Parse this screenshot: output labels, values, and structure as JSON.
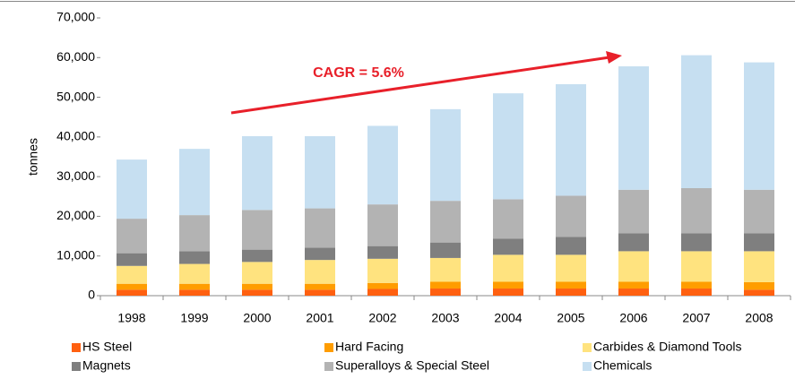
{
  "chart_data": {
    "type": "stacked_bar",
    "y_label": "tonnes",
    "annotation": "CAGR = 5.6%",
    "categories": [
      "1998",
      "1999",
      "2000",
      "2001",
      "2002",
      "2003",
      "2004",
      "2005",
      "2006",
      "2007",
      "2008"
    ],
    "series": [
      {
        "name": "HS Steel",
        "color": "#ff6010",
        "values": [
          1500,
          1500,
          1500,
          1500,
          1700,
          1800,
          1800,
          1800,
          1800,
          1800,
          1500
        ]
      },
      {
        "name": "Hard Facing",
        "color": "#ff9d00",
        "values": [
          1500,
          1500,
          1500,
          1500,
          1500,
          1700,
          1700,
          1700,
          1700,
          1700,
          1900
        ]
      },
      {
        "name": "Carbides & Diamond Tools",
        "color": "#ffe37f",
        "values": [
          4500,
          5000,
          5500,
          6000,
          6100,
          6000,
          6800,
          6800,
          7700,
          7700,
          7800
        ]
      },
      {
        "name": "Magnets",
        "color": "#7f7f7f",
        "values": [
          3200,
          3200,
          3100,
          3100,
          3200,
          3900,
          4100,
          4500,
          4500,
          4500,
          4500
        ]
      },
      {
        "name": "Superalloys & Special Steel",
        "color": "#b3b3b3",
        "values": [
          8700,
          9100,
          10000,
          9900,
          10500,
          10500,
          9900,
          10400,
          11000,
          11400,
          11000
        ]
      },
      {
        "name": "Chemicals",
        "color": "#c6dff1",
        "values": [
          14900,
          16700,
          18600,
          18200,
          19800,
          23100,
          26700,
          28100,
          31100,
          33500,
          32100
        ]
      }
    ],
    "ylim": [
      0,
      70000
    ],
    "yticks": [
      0,
      {
        "value": 10000,
        "label": "10,000"
      },
      {
        "value": 20000,
        "label": "20,000"
      },
      {
        "value": 30000,
        "label": "30,000"
      },
      {
        "value": 40000,
        "label": "40,000"
      },
      {
        "value": 50000,
        "label": "50,000"
      },
      {
        "value": 60000,
        "label": "60,000"
      },
      {
        "value": 70000,
        "label": "70,000"
      }
    ],
    "grid": false
  }
}
